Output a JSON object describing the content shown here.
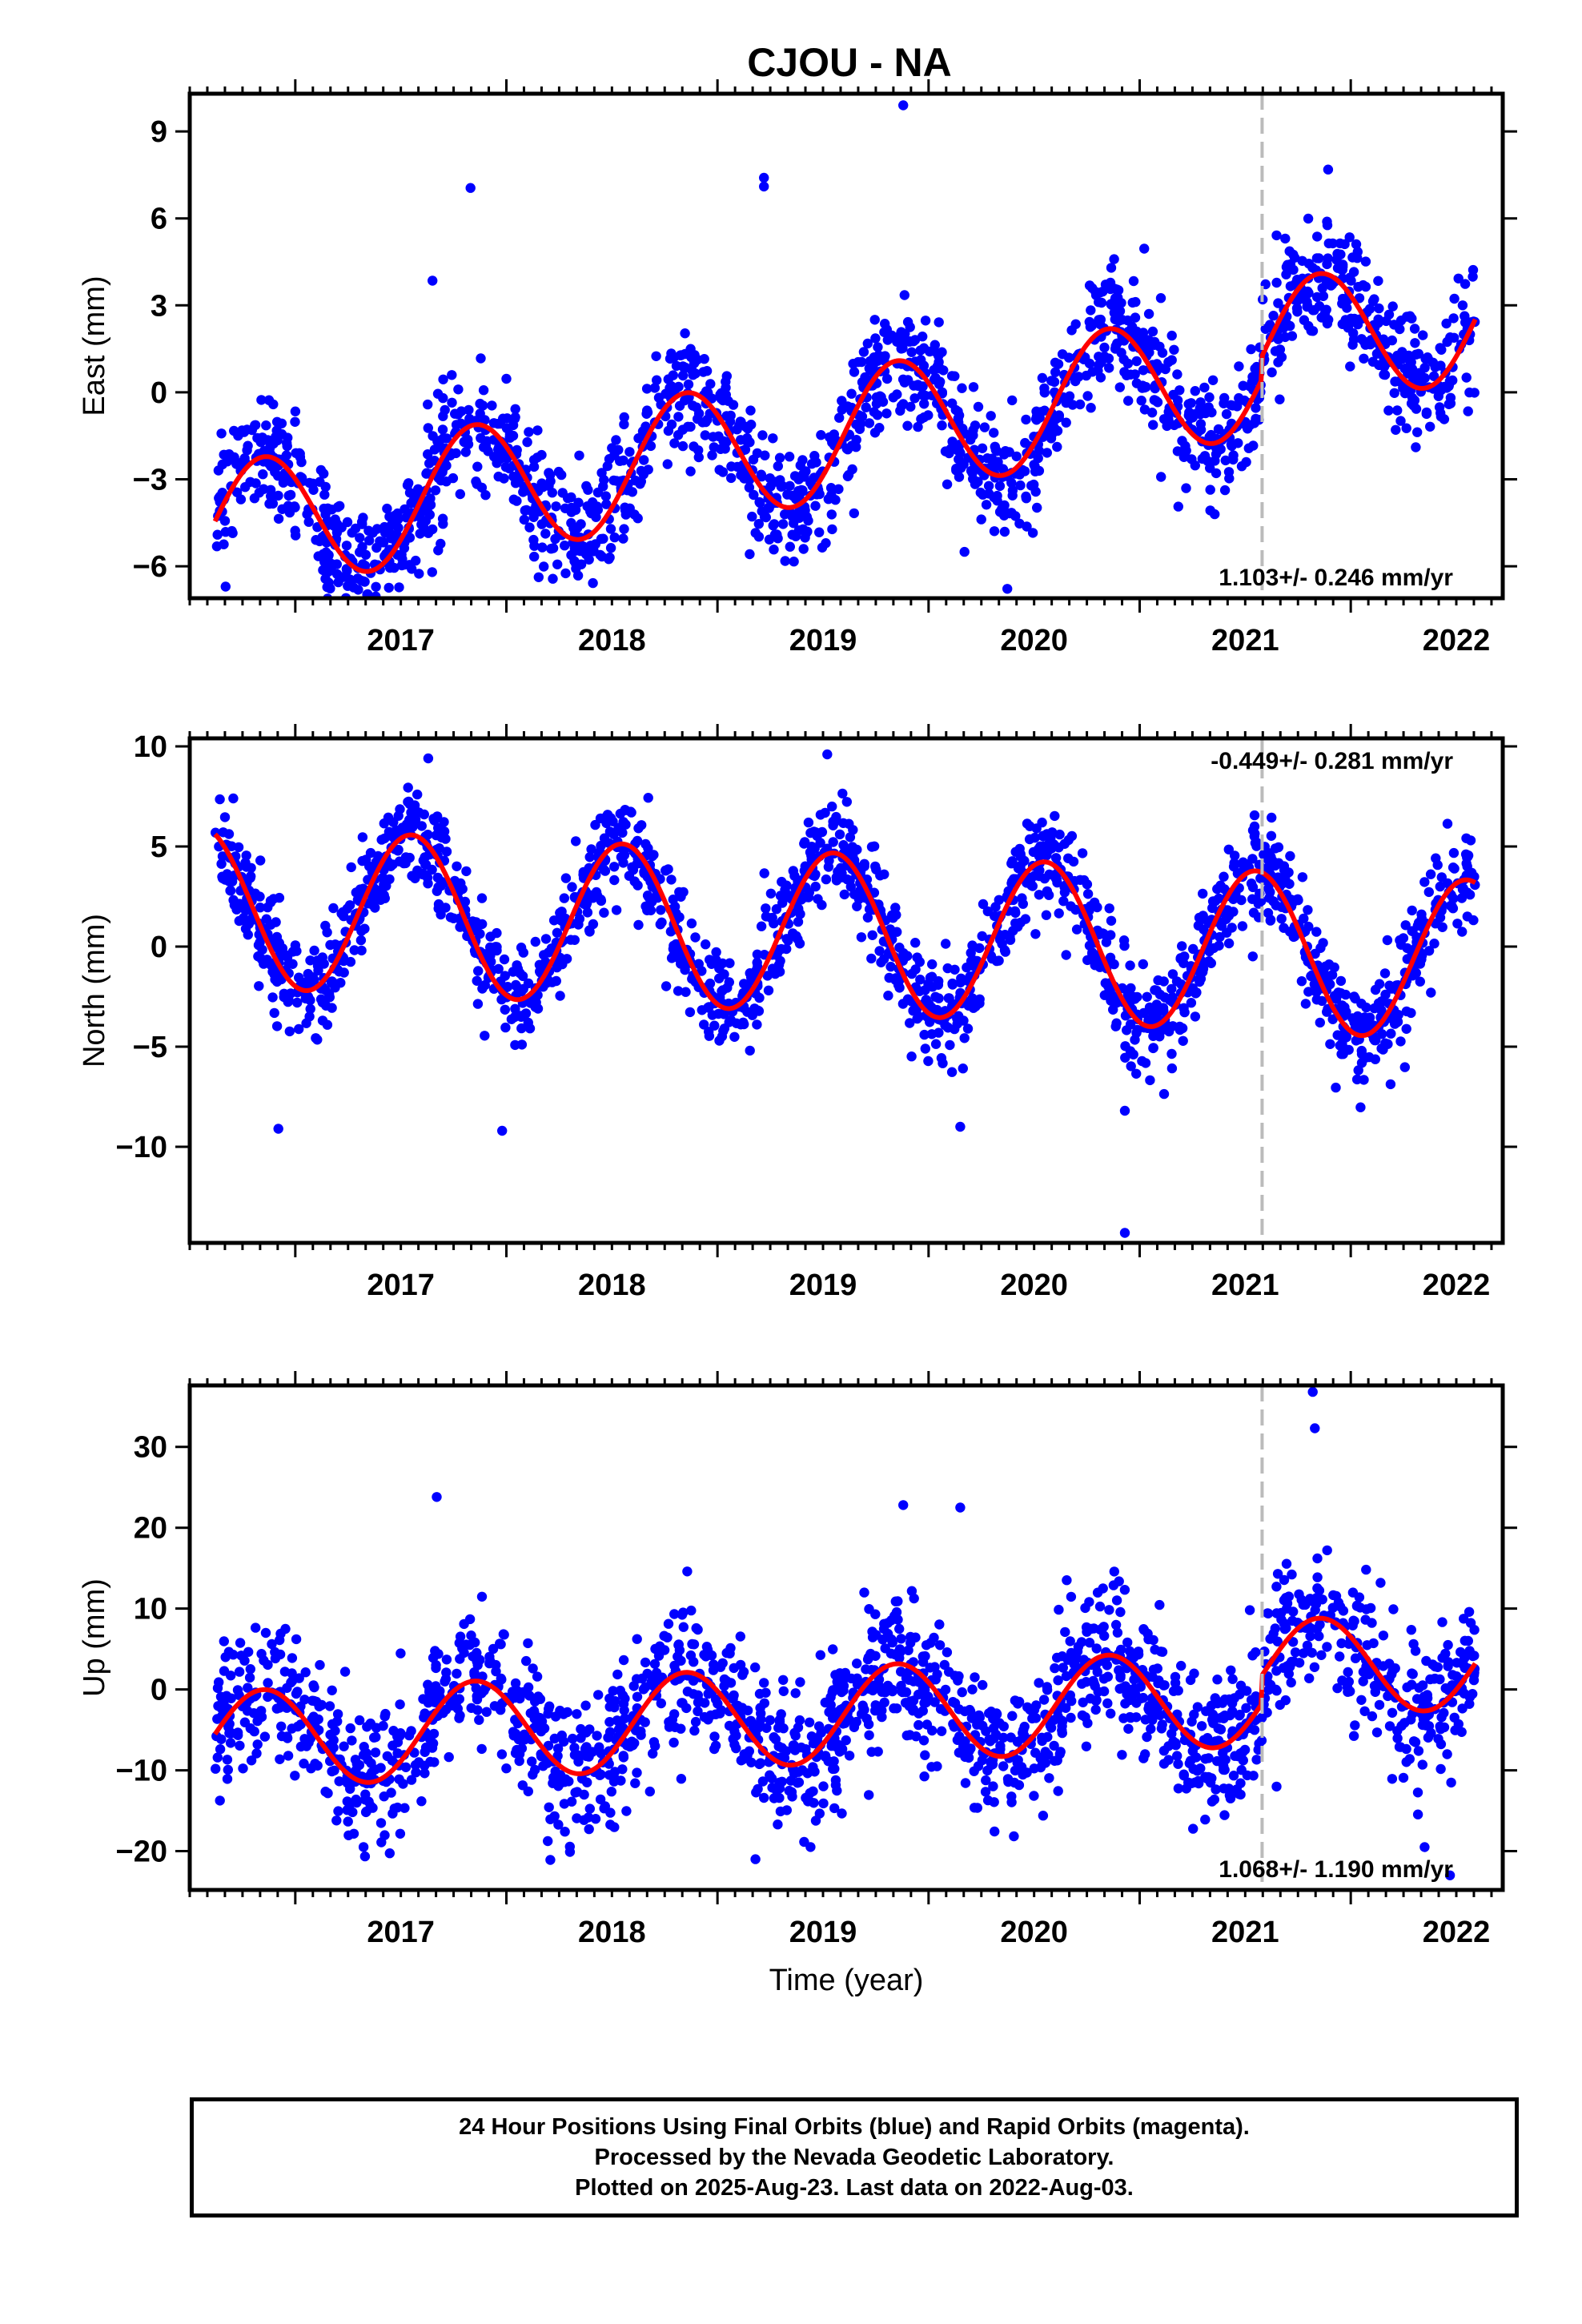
{
  "title": "CJOU - NA",
  "colors": {
    "points": "#0000ff",
    "fit": "#ff0000",
    "refline": "#bbbbbb",
    "axis": "#000000"
  },
  "footer": {
    "line1": "24 Hour Positions Using Final Orbits (blue) and Rapid Orbits (magenta).",
    "line2": "Processed by the Nevada Geodetic Laboratory.",
    "line3": "Plotted on 2025-Aug-23. Last data on 2022-Aug-03."
  },
  "chart_data": [
    {
      "type": "scatter",
      "name": "east",
      "ylabel": "East (mm)",
      "xlabel": "",
      "xlim": [
        2016.5,
        2022.72
      ],
      "ylim": [
        -7.1,
        10.3
      ],
      "yticks": [
        -6,
        -3,
        0,
        3,
        6,
        9
      ],
      "xticks": [
        2017,
        2018,
        2019,
        2020,
        2021,
        2022
      ],
      "refline_x": 2021.58,
      "rate": "1.103+/- 0.246 mm/yr",
      "rate_position": "bottom-right",
      "fit": {
        "start_year": 2016.62,
        "end_year": 2022.59,
        "offset": -1.55,
        "slope": 1.103,
        "amp": 2.25,
        "phase_peak": 0.85,
        "step_year": 2021.58,
        "step": 0.8
      },
      "scatter": {
        "n": 1800,
        "noise": 1.05,
        "seed": 11
      },
      "outliers": [
        [
          2019.88,
          9.9
        ],
        [
          2017.83,
          7.05
        ],
        [
          2019.22,
          7.4
        ],
        [
          2019.22,
          7.1
        ],
        [
          2016.67,
          -6.7
        ],
        [
          2020.17,
          -5.5
        ],
        [
          2017.65,
          3.85
        ]
      ]
    },
    {
      "type": "scatter",
      "name": "north",
      "ylabel": "North (mm)",
      "xlabel": "",
      "xlim": [
        2016.5,
        2022.72
      ],
      "ylim": [
        -14.8,
        10.4
      ],
      "yticks": [
        -10,
        -5,
        0,
        5,
        10
      ],
      "xticks": [
        2017,
        2018,
        2019,
        2020,
        2021,
        2022
      ],
      "refline_x": 2021.58,
      "rate": "-0.449+/- 0.281 mm/yr",
      "rate_position": "top-right",
      "fit": {
        "start_year": 2016.62,
        "end_year": 2022.59,
        "offset": 0.7,
        "slope": -0.449,
        "amp": 4.0,
        "phase_peak": 0.55,
        "step_year": 2021.58,
        "step": 0.0
      },
      "scatter": {
        "n": 1800,
        "noise": 1.25,
        "seed": 23
      },
      "outliers": [
        [
          2020.93,
          -14.3
        ],
        [
          2019.52,
          9.6
        ],
        [
          2017.63,
          9.4
        ],
        [
          2016.92,
          -9.1
        ],
        [
          2017.98,
          -9.2
        ],
        [
          2020.15,
          -9.0
        ],
        [
          2020.93,
          -8.2
        ]
      ]
    },
    {
      "type": "scatter",
      "name": "up",
      "ylabel": "Up (mm)",
      "xlabel": "Time (year)",
      "xlim": [
        2016.5,
        2022.72
      ],
      "ylim": [
        -24.8,
        37.6
      ],
      "yticks": [
        -20,
        -10,
        0,
        10,
        20,
        30
      ],
      "xticks": [
        2017,
        2018,
        2019,
        2020,
        2021,
        2022
      ],
      "refline_x": 2021.58,
      "rate": "1.068+/- 1.190 mm/yr",
      "rate_position": "bottom-right",
      "fit": {
        "start_year": 2016.62,
        "end_year": 2022.59,
        "offset": -3.2,
        "slope": 1.068,
        "amp": 6.0,
        "phase_peak": 0.85,
        "step_year": 2021.58,
        "step": 3.5
      },
      "scatter": {
        "n": 1800,
        "noise": 4.4,
        "seed": 37
      },
      "outliers": [
        [
          2021.82,
          36.8
        ],
        [
          2021.83,
          32.3
        ],
        [
          2017.67,
          23.8
        ],
        [
          2019.88,
          22.8
        ],
        [
          2020.15,
          22.5
        ],
        [
          2019.18,
          -21.0
        ],
        [
          2022.47,
          -23.0
        ],
        [
          2022.35,
          -19.5
        ]
      ]
    }
  ]
}
